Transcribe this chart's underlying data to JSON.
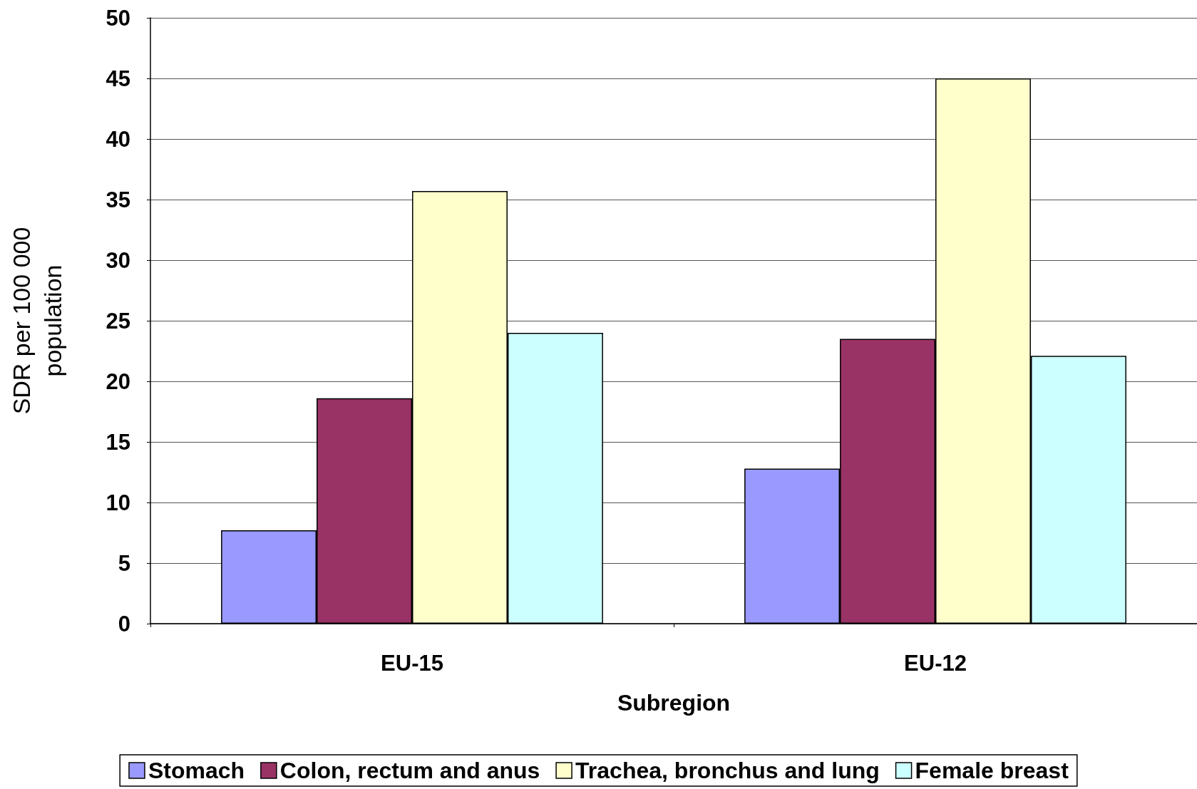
{
  "chart_data": {
    "type": "bar",
    "xlabel": "Subregion",
    "ylabel": "SDR per 100 000\npopulation",
    "categories": [
      "EU-15",
      "EU-12"
    ],
    "series": [
      {
        "name": "Stomach",
        "color": "#9999ff",
        "values": [
          7.7,
          12.8
        ]
      },
      {
        "name": "Colon, rectum and anus",
        "color": "#993366",
        "values": [
          18.6,
          23.5
        ]
      },
      {
        "name": "Trachea, bronchus and lung",
        "color": "#ffffcc",
        "values": [
          35.7,
          45.0
        ]
      },
      {
        "name": "Female breast",
        "color": "#ccffff",
        "values": [
          24.0,
          22.1
        ]
      }
    ],
    "ylim": [
      0,
      50
    ],
    "yticks": [
      0,
      5,
      10,
      15,
      20,
      25,
      30,
      35,
      40,
      45,
      50
    ],
    "grid": "y",
    "legend": "bottom"
  }
}
